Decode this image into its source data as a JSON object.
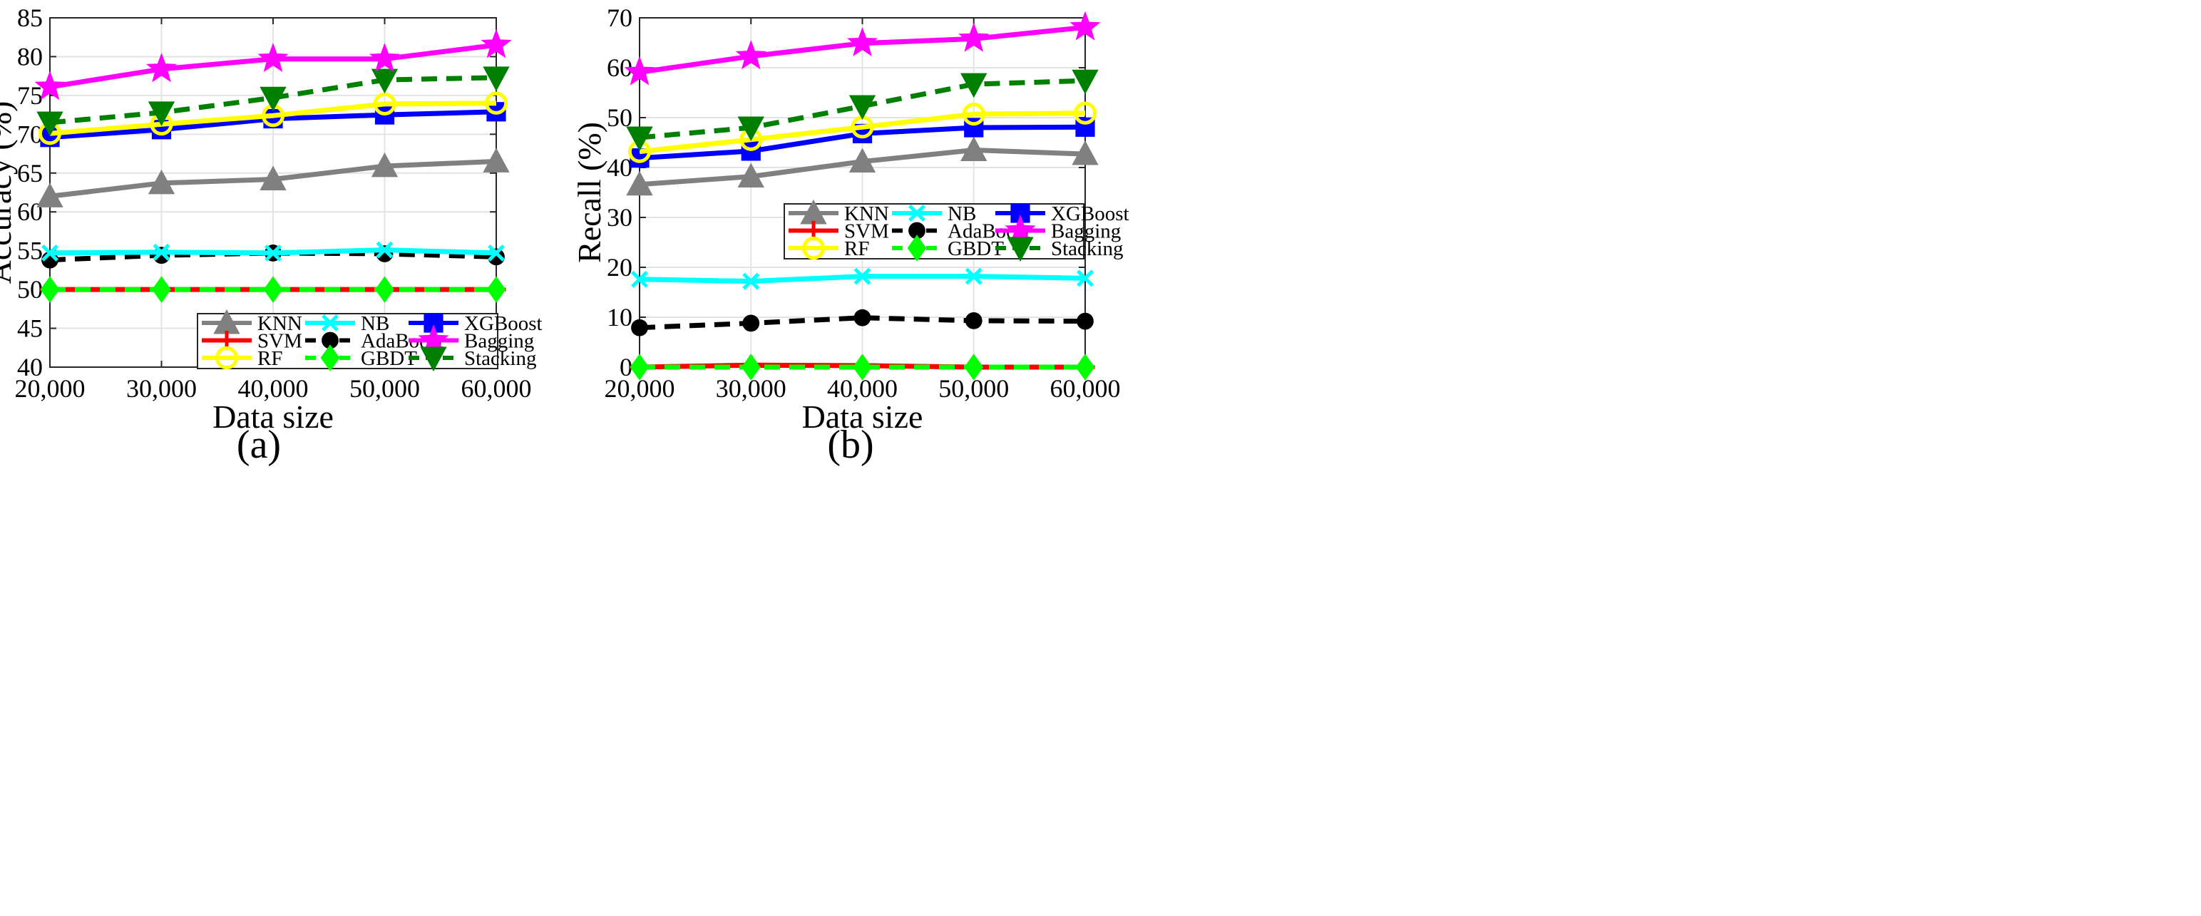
{
  "chart_data": [
    {
      "id": "a",
      "type": "line",
      "panel_label": "(a)",
      "xlabel": "Data size",
      "ylabel": "Accuracy (%)",
      "x": [
        20000,
        30000,
        40000,
        50000,
        60000
      ],
      "x_tick_labels": [
        "20,000",
        "30,000",
        "40,000",
        "50,000",
        "60,000"
      ],
      "xlim": [
        20000,
        60000
      ],
      "ylim": [
        40,
        85
      ],
      "y_ticks": [
        40,
        45,
        50,
        55,
        60,
        65,
        70,
        75,
        80,
        85
      ],
      "grid": true,
      "legend_position": "bottom-right",
      "series": [
        {
          "name": "KNN",
          "values": [
            62.0,
            63.7,
            64.2,
            65.9,
            66.5
          ]
        },
        {
          "name": "NB",
          "values": [
            54.7,
            54.8,
            54.7,
            55.1,
            54.7
          ]
        },
        {
          "name": "XGBoost",
          "values": [
            69.6,
            70.6,
            72.0,
            72.5,
            72.9
          ]
        },
        {
          "name": "SVM",
          "values": [
            50.0,
            50.0,
            50.0,
            50.0,
            50.0
          ]
        },
        {
          "name": "AdaBoost",
          "values": [
            53.8,
            54.4,
            54.7,
            54.6,
            54.2
          ]
        },
        {
          "name": "Bagging",
          "values": [
            76.1,
            78.4,
            79.7,
            79.7,
            81.5
          ]
        },
        {
          "name": "RF",
          "values": [
            70.1,
            71.3,
            72.4,
            73.9,
            74.0
          ]
        },
        {
          "name": "GBDT",
          "values": [
            50.0,
            50.0,
            50.0,
            50.0,
            50.0
          ]
        },
        {
          "name": "Stacking",
          "values": [
            71.5,
            72.8,
            74.7,
            77.0,
            77.3
          ]
        }
      ]
    },
    {
      "id": "b",
      "type": "line",
      "panel_label": "(b)",
      "xlabel": "Data size",
      "ylabel": "Recall (%)",
      "x": [
        20000,
        30000,
        40000,
        50000,
        60000
      ],
      "x_tick_labels": [
        "20,000",
        "30,000",
        "40,000",
        "50,000",
        "60,000"
      ],
      "xlim": [
        20000,
        60000
      ],
      "ylim": [
        0,
        70
      ],
      "y_ticks": [
        0,
        10,
        20,
        30,
        40,
        50,
        60,
        70
      ],
      "grid": true,
      "legend_position": "middle-right",
      "series": [
        {
          "name": "KNN",
          "values": [
            36.6,
            38.2,
            41.2,
            43.5,
            42.7
          ]
        },
        {
          "name": "NB",
          "values": [
            17.6,
            17.2,
            18.2,
            18.2,
            17.8
          ]
        },
        {
          "name": "XGBoost",
          "values": [
            41.9,
            43.3,
            46.8,
            48.0,
            48.1
          ]
        },
        {
          "name": "SVM",
          "values": [
            0.0,
            0.4,
            0.3,
            0.0,
            0.0
          ]
        },
        {
          "name": "AdaBoost",
          "values": [
            7.9,
            8.8,
            9.9,
            9.3,
            9.2
          ]
        },
        {
          "name": "Bagging",
          "values": [
            59.1,
            62.3,
            64.9,
            65.8,
            68.1
          ]
        },
        {
          "name": "RF",
          "values": [
            43.2,
            45.6,
            48.1,
            50.7,
            50.9
          ]
        },
        {
          "name": "GBDT",
          "values": [
            0.0,
            0.0,
            0.0,
            0.0,
            0.0
          ]
        },
        {
          "name": "Stacking",
          "values": [
            46.0,
            48.0,
            52.3,
            56.7,
            57.4
          ]
        }
      ]
    }
  ],
  "series_styles": {
    "KNN": {
      "color": "#808080",
      "marker": "triangle-up",
      "dashed": false
    },
    "NB": {
      "color": "#00ffff",
      "marker": "x",
      "dashed": false
    },
    "XGBoost": {
      "color": "#0000ff",
      "marker": "square",
      "dashed": false
    },
    "SVM": {
      "color": "#ff0000",
      "marker": "plus",
      "dashed": false
    },
    "AdaBoost": {
      "color": "#000000",
      "marker": "circle-filled",
      "dashed": true
    },
    "Bagging": {
      "color": "#ff00ff",
      "marker": "star",
      "dashed": false
    },
    "RF": {
      "color": "#ffff00",
      "marker": "circle-open",
      "dashed": false
    },
    "GBDT": {
      "color": "#00ff00",
      "marker": "diamond",
      "dashed": true
    },
    "Stacking": {
      "color": "#008000",
      "marker": "triangle-down",
      "dashed": true
    }
  }
}
